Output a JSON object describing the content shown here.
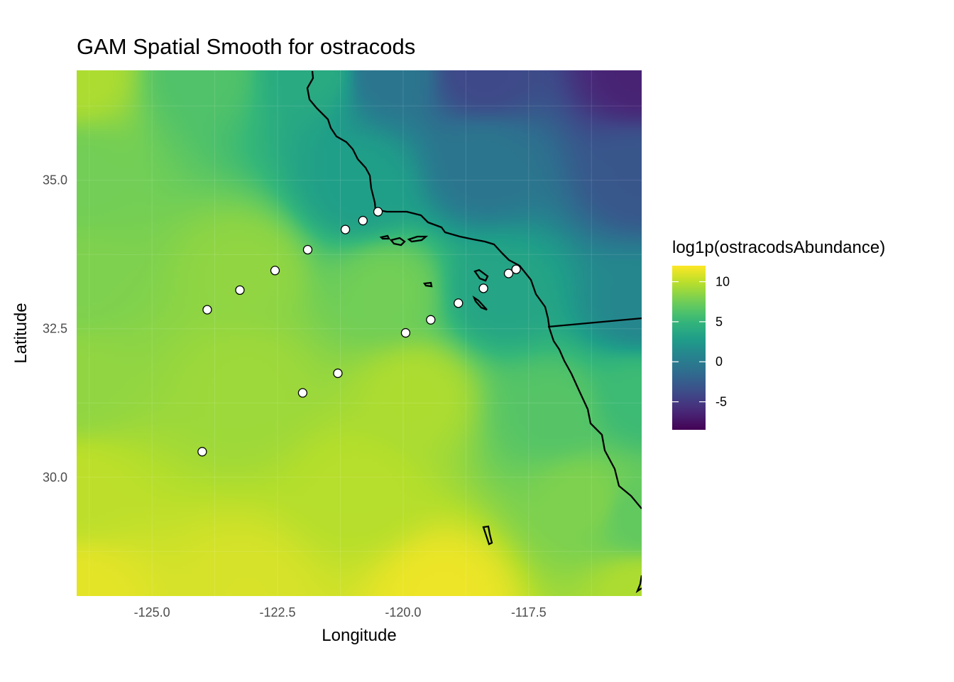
{
  "chart_data": {
    "type": "heatmap",
    "title": "GAM Spatial Smooth for ostracods",
    "xlabel": "Longitude",
    "ylabel": "Latitude",
    "xlim": [
      -126.5,
      -115.25
    ],
    "ylim": [
      28.0,
      36.85
    ],
    "x_ticks": [
      {
        "value": -125.0,
        "label": "-125.0"
      },
      {
        "value": -122.5,
        "label": "-122.5"
      },
      {
        "value": -120.0,
        "label": "-120.0"
      },
      {
        "value": -117.5,
        "label": "-117.5"
      }
    ],
    "y_ticks": [
      {
        "value": 30.0,
        "label": "30.0"
      },
      {
        "value": 32.5,
        "label": "32.5"
      },
      {
        "value": 35.0,
        "label": "35.0"
      }
    ],
    "legend": {
      "title": "log1p(ostracodsAbundance)",
      "position": "right",
      "range": [
        -8.5,
        12
      ],
      "ticks": [
        {
          "value": 10,
          "label": "10"
        },
        {
          "value": 5,
          "label": "5"
        },
        {
          "value": 0,
          "label": "0"
        },
        {
          "value": -5,
          "label": "-5"
        }
      ]
    },
    "grid": true,
    "points": [
      {
        "lon": -124.0,
        "lat": 30.43
      },
      {
        "lon": -123.9,
        "lat": 32.82
      },
      {
        "lon": -123.25,
        "lat": 33.15
      },
      {
        "lon": -122.55,
        "lat": 33.48
      },
      {
        "lon": -121.9,
        "lat": 33.83
      },
      {
        "lon": -121.15,
        "lat": 34.17
      },
      {
        "lon": -120.8,
        "lat": 34.32
      },
      {
        "lon": -120.5,
        "lat": 34.47
      },
      {
        "lon": -122.0,
        "lat": 31.42
      },
      {
        "lon": -121.3,
        "lat": 31.75
      },
      {
        "lon": -119.95,
        "lat": 32.43
      },
      {
        "lon": -119.45,
        "lat": 32.65
      },
      {
        "lon": -118.9,
        "lat": 32.93
      },
      {
        "lon": -118.4,
        "lat": 33.18
      },
      {
        "lon": -117.9,
        "lat": 33.43
      },
      {
        "lon": -117.75,
        "lat": 33.5
      }
    ],
    "colormap": "viridis"
  }
}
